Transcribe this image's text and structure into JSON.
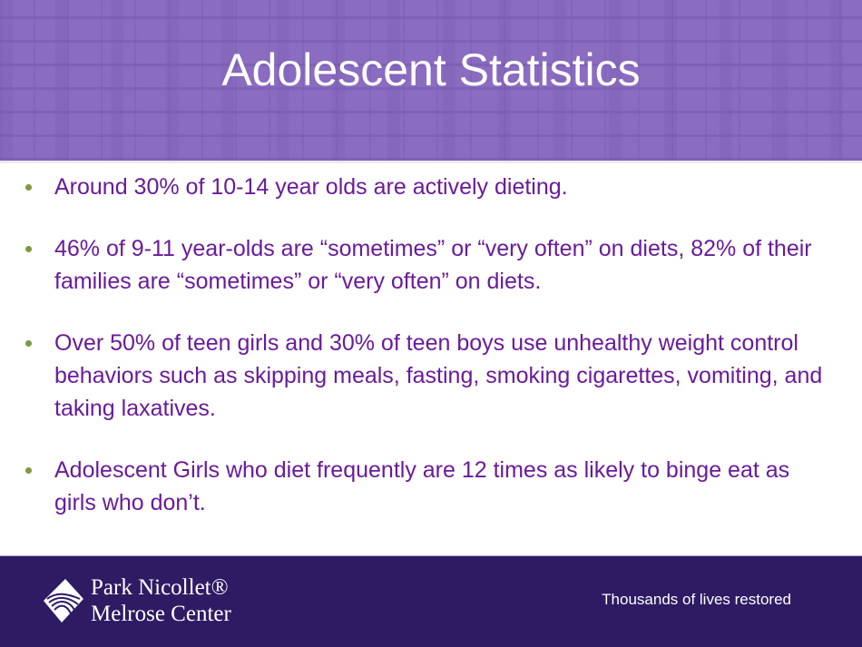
{
  "header": {
    "title": "Adolescent Statistics"
  },
  "bullets": [
    "Around 30% of 10-14 year olds are actively dieting.",
    "46% of 9-11 year-olds are “sometimes” or “very often” on diets, 82% of their families are “sometimes” or “very often” on diets.",
    "Over 50% of teen girls and 30% of teen boys use unhealthy weight control behaviors such as skipping meals, fasting, smoking cigarettes, vomiting, and taking laxatives.",
    "Adolescent Girls who diet frequently are 12 times as likely to binge eat as girls who don’t."
  ],
  "footer": {
    "logo_line1": "Park Nicollet®",
    "logo_line2": "Melrose Center",
    "tagline": "Thousands of lives restored"
  },
  "colors": {
    "header": "#8a6cc0",
    "text": "#6a1b9a",
    "bullet": "#7b9a3c",
    "footer": "#2e1b64"
  }
}
